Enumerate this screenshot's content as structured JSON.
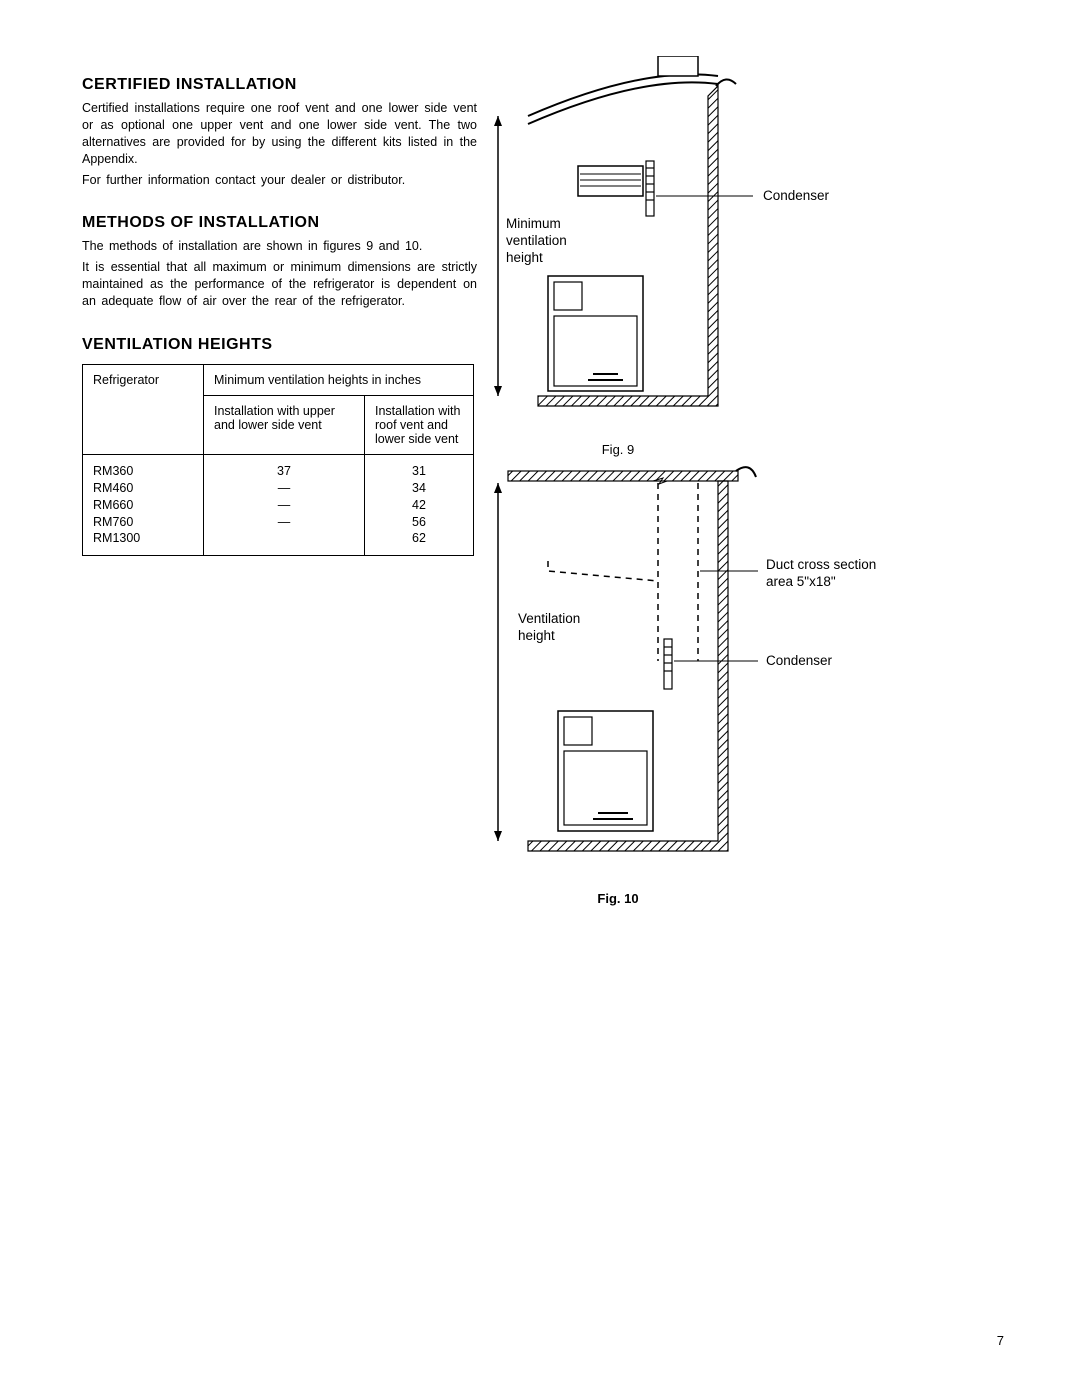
{
  "sections": {
    "certified": {
      "heading": "CERTIFIED  INSTALLATION",
      "p1": "Certified installations require one roof vent and one lower side vent or as optional one upper vent and one lower side vent. The two alternatives are provided for by using the different kits listed in the Appendix.",
      "p2": "For further information contact your dealer or distributor."
    },
    "methods": {
      "heading": "METHODS  OF  INSTALLATION",
      "p1": "The methods of installation are shown in figures 9 and 10.",
      "p2": "It is essential that all maximum or minimum dimensions are strictly maintained as the performance of the refrigerator is dependent on an adequate flow of air over the rear of the refrigerator."
    },
    "ventilation": {
      "heading": "VENTILATION  HEIGHTS",
      "tableHeader1": "Refrigerator",
      "tableHeader2": "Minimum    ventilation heights in inches",
      "subHeader1": "Installation with upper and lower side vent",
      "subHeader2": "Installation with roof vent and lower side vent",
      "rows": [
        {
          "model": "RM360",
          "a": "37",
          "b": "31"
        },
        {
          "model": "RM460",
          "a": "—",
          "b": "34"
        },
        {
          "model": "RM660",
          "a": "—",
          "b": "42"
        },
        {
          "model": "RM760",
          "a": "—",
          "b": "56"
        },
        {
          "model": "RM1300",
          "a": "",
          "b": "62"
        }
      ]
    }
  },
  "fig9": {
    "caption": "Fig.  9",
    "label_min_vent": "Minimum ventilation height",
    "label_condenser": "Condenser"
  },
  "fig10": {
    "caption": "Fig.  10",
    "label_vent": "Ventilation height",
    "label_duct": "Duct  cross section",
    "label_duct2": "area  5\"x18\"",
    "label_condenser": "Condenser"
  },
  "pagenum": "7",
  "colors": {
    "stroke": "#000000",
    "hatch": "#000000"
  }
}
